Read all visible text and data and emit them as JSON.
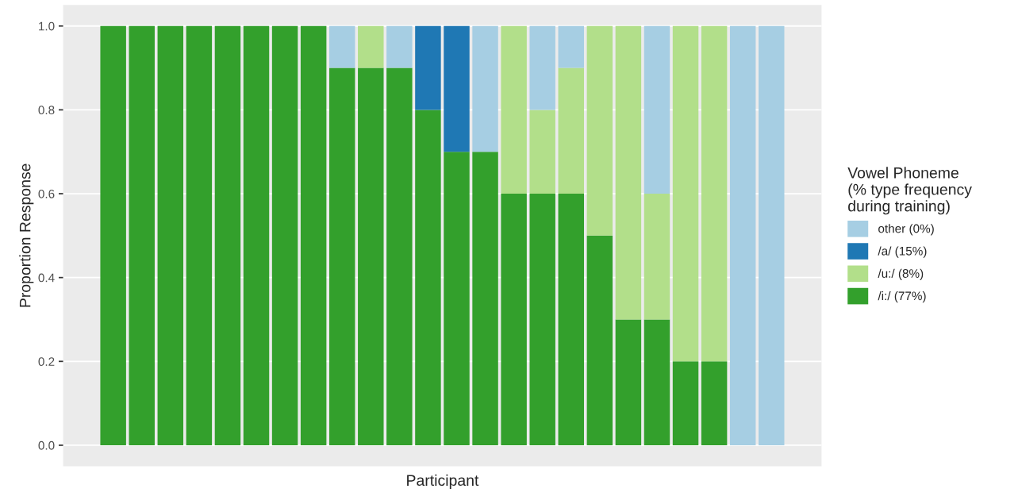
{
  "chart_data": {
    "type": "bar",
    "stacked": true,
    "xlabel": "Participant",
    "ylabel": "Proportion Response",
    "legend_title": "Vowel Phoneme\n(% type frequency\nduring training)",
    "categories": [
      null,
      null,
      null,
      null,
      null,
      null,
      null,
      null,
      null,
      null,
      null,
      null,
      null,
      null,
      null,
      null,
      null,
      null,
      null,
      null,
      null,
      null,
      null,
      null
    ],
    "ylim": [
      -0.05,
      1.05
    ],
    "yticks": [
      {
        "value": 0,
        "label": "0.0"
      },
      {
        "value": 0.2,
        "label": "0.2"
      },
      {
        "value": 0.4,
        "label": "0.4"
      },
      {
        "value": 0.6,
        "label": "0.6"
      },
      {
        "value": 0.8,
        "label": "0.8"
      },
      {
        "value": 1,
        "label": "1.0"
      }
    ],
    "grid": "y",
    "legend": "right",
    "series": [
      {
        "name": "/i:/ (77%)",
        "color": "#33a02c",
        "values": [
          1,
          1,
          1,
          1,
          1,
          1,
          1,
          1,
          0.9,
          0.9,
          0.9,
          0.8,
          0.7,
          0.7,
          0.6,
          0.6,
          0.6,
          0.5,
          0.3,
          0.3,
          0.2,
          0.2,
          0,
          0
        ]
      },
      {
        "name": "/u:/ (8%)",
        "color": "#b2df8a",
        "values": [
          0,
          0,
          0,
          0,
          0,
          0,
          0,
          0,
          0,
          0.1,
          0,
          0,
          0,
          0,
          0.4,
          0.2,
          0.3,
          0.5,
          0.7,
          0.3,
          0.8,
          0.8,
          0,
          0
        ]
      },
      {
        "name": "/a/ (15%)",
        "color": "#1f78b4",
        "values": [
          0,
          0,
          0,
          0,
          0,
          0,
          0,
          0,
          0,
          0,
          0,
          0.2,
          0.3,
          0,
          0,
          0,
          0,
          0,
          0,
          0,
          0,
          0,
          0,
          0
        ]
      },
      {
        "name": "other (0%)",
        "color": "#a6cee3",
        "values": [
          0,
          0,
          0,
          0,
          0,
          0,
          0,
          0,
          0.1,
          0,
          0.1,
          0,
          0,
          0.3,
          0,
          0.2,
          0.1,
          0,
          0,
          0.4,
          0,
          0,
          1,
          1
        ]
      }
    ]
  }
}
